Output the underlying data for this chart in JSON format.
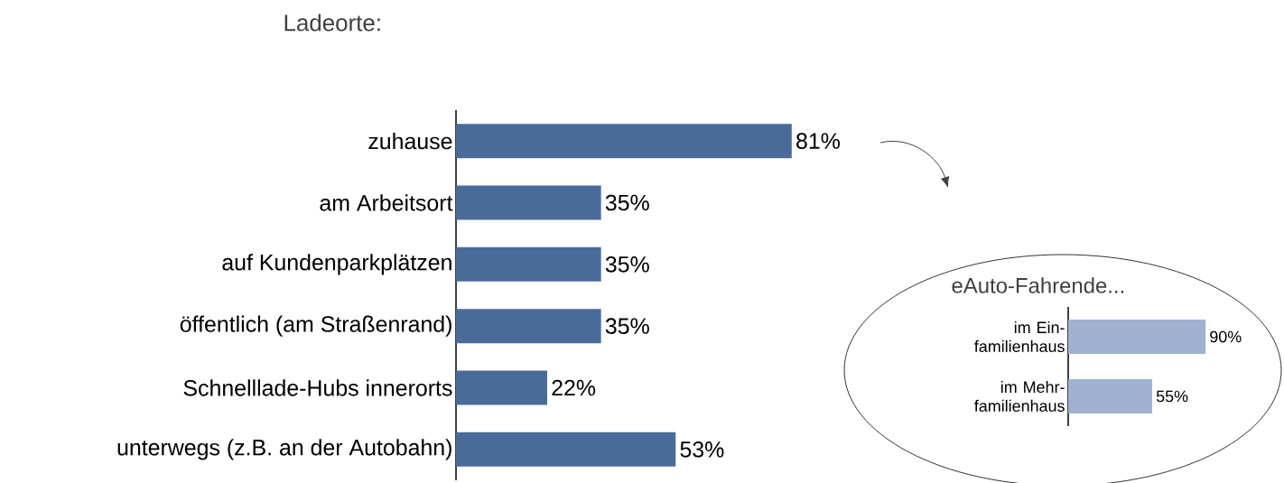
{
  "chart_data": [
    {
      "type": "bar",
      "orientation": "horizontal",
      "title": "Ladeorte:",
      "categories": [
        "zuhause",
        "am Arbeitsort",
        "auf Kundenparkplätzen",
        "öffentlich (am Straßenrand)",
        "Schnelllade-Hubs innerorts",
        "unterwegs (z.B. an der Autobahn)"
      ],
      "values": [
        81,
        35,
        35,
        35,
        22,
        53
      ],
      "value_labels": [
        "81%",
        "35%",
        "35%",
        "35%",
        "22%",
        "53%"
      ],
      "color": "#4a6b9a"
    },
    {
      "type": "bar",
      "orientation": "horizontal",
      "title": "eAuto-Fahrende...",
      "categories": [
        "im Ein-familienhaus",
        "im Mehr-familienhaus"
      ],
      "values": [
        90,
        55
      ],
      "value_labels": [
        "90%",
        "55%"
      ],
      "color": "#9fb2d0"
    }
  ]
}
